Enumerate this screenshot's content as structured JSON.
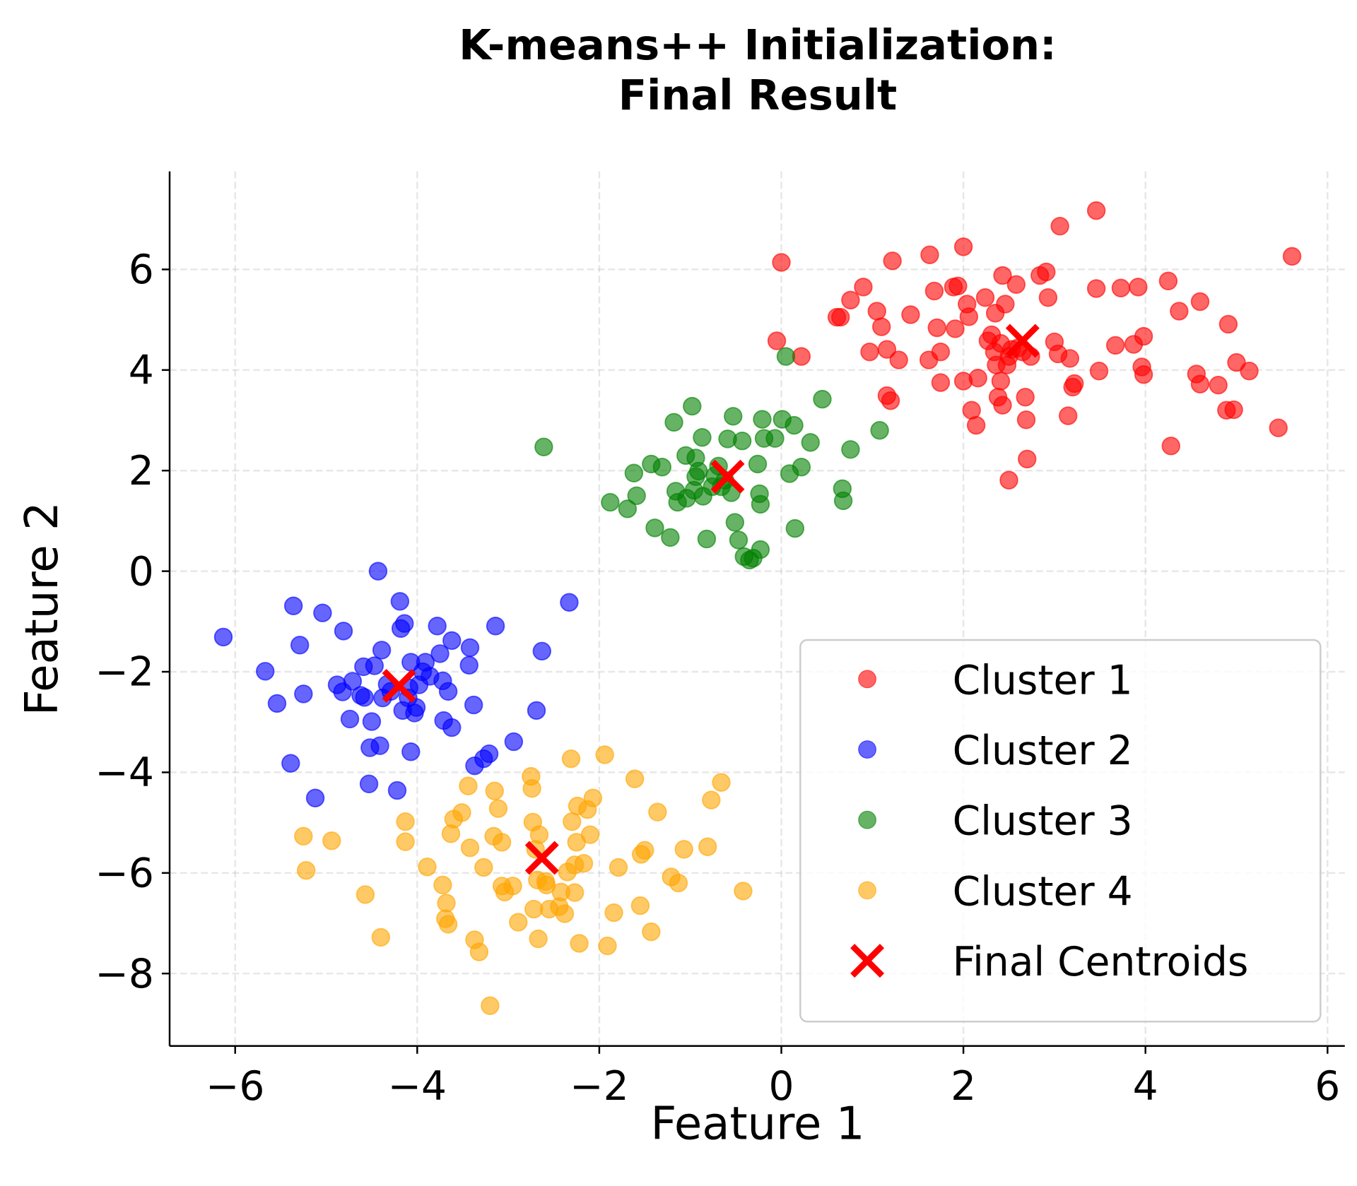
{
  "chart_data": {
    "type": "scatter",
    "title": "K-means++ Initialization:\nFinal Result",
    "xlabel": "Feature 1",
    "ylabel": "Feature 2",
    "xlim": [
      -6.72,
      6.19
    ],
    "ylim": [
      -9.44,
      7.95
    ],
    "xticks": [
      {
        "value": -6,
        "label": "−6"
      },
      {
        "value": -4,
        "label": "−4"
      },
      {
        "value": -2,
        "label": "−2"
      },
      0,
      2,
      4,
      6
    ],
    "yticks": [
      {
        "value": -8,
        "label": "−8"
      },
      {
        "value": -6,
        "label": "−6"
      },
      {
        "value": -4,
        "label": "−4"
      },
      {
        "value": -2,
        "label": "−2"
      },
      0,
      2,
      4,
      6
    ],
    "grid": true,
    "legend": "lower right",
    "series": [
      {
        "name": "Cluster 1",
        "color": "#ff0000",
        "marker": "o",
        "x": [
          0.0,
          -0.05,
          0.22,
          0.65,
          0.61,
          0.76,
          0.9,
          0.97,
          1.05,
          1.1,
          1.16,
          1.22,
          1.16,
          1.2,
          1.29,
          1.42,
          1.63,
          1.68,
          1.71,
          1.75,
          1.75,
          1.62,
          1.89,
          1.94,
          1.91,
          2.0,
          2.0,
          2.04,
          2.06,
          2.09,
          2.14,
          2.16,
          2.24,
          2.31,
          2.34,
          2.35,
          2.38,
          2.41,
          2.43,
          2.43,
          2.46,
          2.5,
          2.53,
          2.58,
          2.68,
          2.69,
          2.7,
          2.84,
          2.91,
          2.93,
          3.0,
          3.04,
          3.06,
          3.15,
          3.17,
          3.2,
          3.22,
          3.46,
          3.46,
          3.49,
          3.67,
          3.73,
          3.87,
          3.92,
          3.96,
          3.98,
          3.98,
          4.25,
          4.28,
          4.37,
          4.56,
          4.6,
          4.6,
          4.8,
          4.89,
          4.91,
          4.97,
          5.0,
          5.14,
          5.46,
          5.61,
          2.27,
          2.41,
          2.5,
          2.6,
          2.65,
          2.74,
          2.48,
          2.36
        ],
        "y": [
          6.14,
          4.58,
          4.27,
          5.05,
          5.05,
          5.39,
          5.65,
          4.36,
          5.17,
          4.86,
          4.41,
          6.17,
          3.49,
          3.39,
          4.2,
          5.1,
          6.29,
          5.57,
          4.84,
          4.36,
          3.75,
          4.2,
          5.65,
          5.67,
          4.82,
          6.45,
          3.78,
          5.31,
          5.06,
          3.2,
          2.9,
          3.84,
          5.44,
          4.7,
          4.36,
          5.13,
          3.46,
          3.78,
          5.88,
          3.3,
          5.31,
          1.81,
          4.41,
          5.7,
          3.46,
          3.01,
          2.23,
          5.88,
          5.95,
          5.44,
          4.56,
          4.32,
          6.86,
          3.09,
          4.23,
          3.66,
          3.73,
          7.17,
          5.62,
          3.98,
          4.49,
          5.63,
          4.51,
          5.65,
          4.06,
          3.91,
          4.67,
          5.77,
          2.49,
          5.17,
          3.92,
          5.36,
          3.72,
          3.7,
          3.2,
          4.91,
          3.21,
          4.15,
          3.98,
          2.85,
          6.26,
          4.58,
          4.53,
          4.27,
          4.44,
          4.36,
          4.27,
          4.1,
          4.1
        ]
      },
      {
        "name": "Cluster 2",
        "color": "#0000ff",
        "marker": "o",
        "x": [
          -6.13,
          -5.67,
          -5.54,
          -5.36,
          -5.29,
          -5.25,
          -5.39,
          -5.12,
          -5.04,
          -4.88,
          -4.82,
          -4.81,
          -4.74,
          -4.71,
          -4.62,
          -4.59,
          -4.58,
          -4.53,
          -4.5,
          -4.52,
          -4.47,
          -4.43,
          -4.41,
          -4.39,
          -4.38,
          -4.33,
          -4.29,
          -4.22,
          -4.19,
          -4.18,
          -4.14,
          -4.16,
          -4.1,
          -4.07,
          -4.07,
          -4.03,
          -3.98,
          -3.94,
          -3.91,
          -3.86,
          -3.78,
          -3.75,
          -3.72,
          -3.71,
          -3.66,
          -3.62,
          -3.62,
          -3.42,
          -3.43,
          -3.38,
          -3.37,
          -3.27,
          -3.21,
          -3.14,
          -2.94,
          -2.69,
          -2.63,
          -2.33,
          -4.09,
          -4.01
        ],
        "y": [
          -1.31,
          -1.99,
          -2.63,
          -0.69,
          -1.47,
          -2.44,
          -3.82,
          -4.51,
          -0.83,
          -2.26,
          -2.4,
          -1.19,
          -2.94,
          -2.19,
          -2.47,
          -1.9,
          -2.51,
          -4.23,
          -2.99,
          -3.51,
          -1.88,
          0.0,
          -3.47,
          -1.57,
          -2.52,
          -2.25,
          -2.39,
          -4.36,
          -0.6,
          -1.14,
          -1.04,
          -2.77,
          -2.52,
          -3.59,
          -1.81,
          -2.82,
          -2.26,
          -2.0,
          -1.81,
          -2.09,
          -1.09,
          -1.64,
          -2.18,
          -2.97,
          -2.39,
          -3.11,
          -1.38,
          -1.52,
          -1.87,
          -2.66,
          -3.87,
          -3.73,
          -3.63,
          -1.09,
          -3.39,
          -2.77,
          -1.59,
          -0.62,
          -2.32,
          -2.71
        ]
      },
      {
        "name": "Cluster 3",
        "color": "#008000",
        "marker": "o",
        "x": [
          -2.61,
          -1.88,
          -1.69,
          -1.62,
          -1.59,
          -1.43,
          -1.39,
          -1.31,
          -1.22,
          -1.18,
          -1.16,
          -1.14,
          -1.05,
          -1.04,
          -0.98,
          -0.96,
          -0.94,
          -0.94,
          -0.91,
          -0.87,
          -0.86,
          -0.82,
          -0.73,
          -0.69,
          -0.66,
          -0.55,
          -0.53,
          -0.51,
          -0.47,
          -0.59,
          -0.43,
          -0.41,
          -0.35,
          -0.31,
          -0.26,
          -0.24,
          -0.23,
          -0.23,
          -0.21,
          -0.19,
          -0.07,
          0.01,
          0.05,
          0.09,
          0.14,
          0.15,
          0.22,
          0.32,
          0.45,
          0.67,
          0.68,
          0.76,
          1.08,
          -0.76,
          -0.62
        ],
        "y": [
          2.47,
          1.37,
          1.24,
          1.95,
          1.5,
          2.13,
          0.86,
          2.07,
          0.67,
          2.96,
          1.59,
          1.37,
          2.3,
          1.45,
          3.28,
          1.61,
          1.88,
          2.25,
          1.99,
          2.66,
          1.49,
          0.64,
          1.9,
          2.09,
          1.68,
          1.56,
          3.08,
          0.97,
          0.62,
          2.63,
          2.59,
          0.29,
          0.22,
          0.26,
          2.13,
          1.54,
          1.33,
          0.43,
          3.02,
          2.64,
          2.64,
          3.02,
          4.27,
          1.94,
          2.9,
          0.85,
          2.07,
          2.56,
          3.42,
          1.64,
          1.4,
          2.42,
          2.8,
          1.68,
          1.81
        ]
      },
      {
        "name": "Cluster 4",
        "color": "#ffa500",
        "marker": "o",
        "x": [
          -5.25,
          -5.22,
          -4.94,
          -4.57,
          -4.4,
          -4.13,
          -4.13,
          -3.89,
          -3.72,
          -3.68,
          -3.69,
          -3.66,
          -3.63,
          -3.6,
          -3.51,
          -3.44,
          -3.42,
          -3.37,
          -3.32,
          -3.27,
          -3.2,
          -3.16,
          -3.15,
          -3.11,
          -3.07,
          -3.07,
          -3.04,
          -2.95,
          -2.89,
          -2.75,
          -2.74,
          -2.73,
          -2.72,
          -2.7,
          -2.68,
          -2.67,
          -2.66,
          -2.59,
          -2.58,
          -2.55,
          -2.44,
          -2.42,
          -2.38,
          -2.35,
          -2.31,
          -2.3,
          -2.27,
          -2.27,
          -2.25,
          -2.24,
          -2.22,
          -2.17,
          -2.13,
          -2.1,
          -2.07,
          -1.94,
          -1.91,
          -1.84,
          -1.79,
          -1.61,
          -1.55,
          -1.54,
          -1.5,
          -1.43,
          -1.36,
          -1.21,
          -1.13,
          -1.07,
          -0.81,
          -0.77,
          -0.66,
          -0.42
        ],
        "y": [
          -5.27,
          -5.95,
          -5.36,
          -6.43,
          -7.28,
          -4.98,
          -5.38,
          -5.88,
          -6.24,
          -6.6,
          -6.91,
          -7.02,
          -5.22,
          -4.93,
          -4.8,
          -4.27,
          -5.5,
          -7.33,
          -7.57,
          -5.89,
          -8.64,
          -5.27,
          -4.37,
          -4.72,
          -5.39,
          -6.26,
          -6.38,
          -6.26,
          -6.98,
          -4.08,
          -4.32,
          -4.99,
          -6.72,
          -5.53,
          -6.14,
          -7.31,
          -5.24,
          -6.17,
          -6.24,
          -6.72,
          -6.67,
          -6.38,
          -6.81,
          -5.98,
          -3.73,
          -4.98,
          -5.84,
          -6.39,
          -5.39,
          -4.67,
          -7.4,
          -5.81,
          -4.74,
          -5.24,
          -4.51,
          -3.65,
          -7.45,
          -6.79,
          -5.89,
          -4.13,
          -6.65,
          -5.63,
          -5.55,
          -7.17,
          -4.79,
          -6.08,
          -6.2,
          -5.53,
          -5.48,
          -4.55,
          -4.2,
          -6.36
        ]
      },
      {
        "name": "Final Centroids",
        "color": "#ff0000",
        "marker": "x",
        "x": [
          2.65,
          -0.59,
          -4.2,
          -2.63
        ],
        "y": [
          4.58,
          1.88,
          -2.28,
          -5.7
        ]
      }
    ]
  }
}
